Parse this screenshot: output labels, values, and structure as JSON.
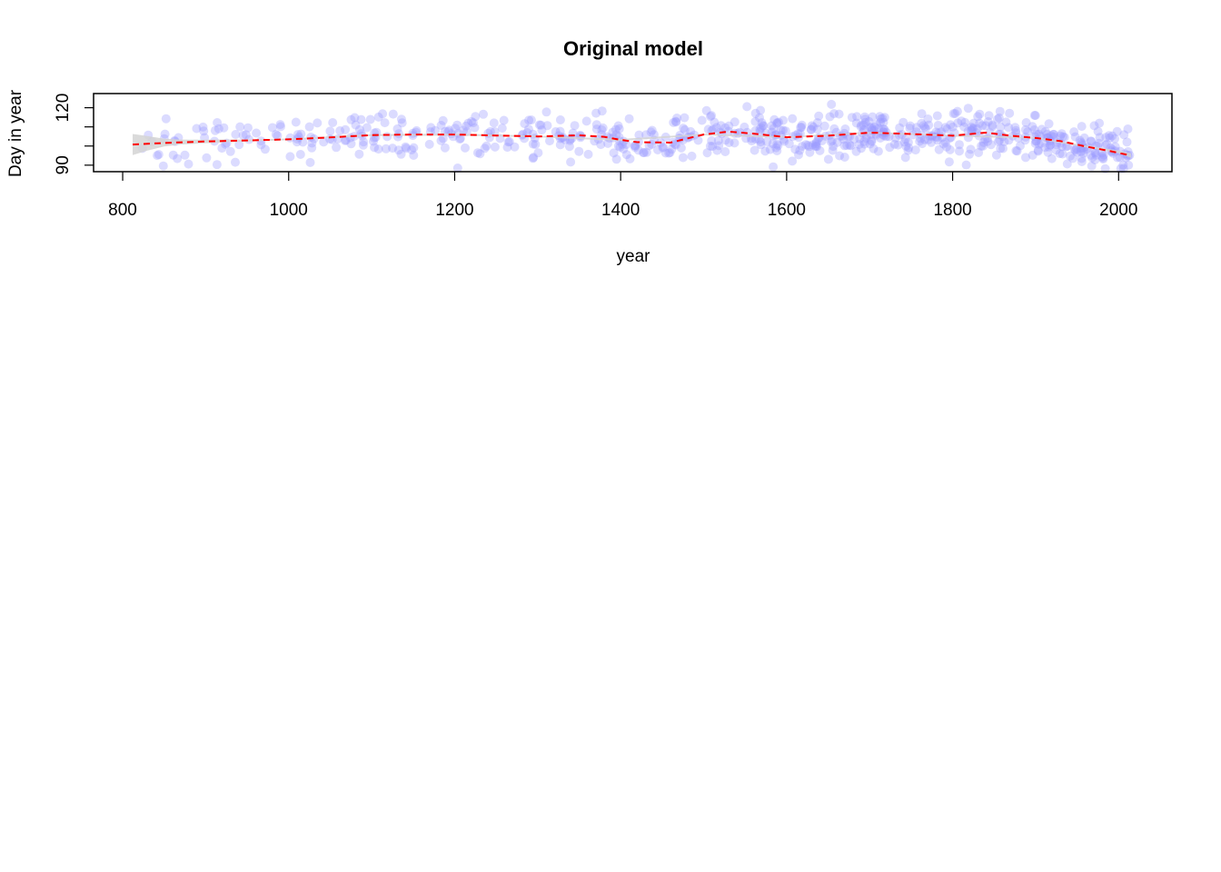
{
  "chart_data": {
    "type": "scatter",
    "title": "Original model",
    "xlabel": "year",
    "ylabel": "Day in year",
    "xlim": [
      812,
      2015
    ],
    "ylim": [
      86.6,
      127.4
    ],
    "x_ticks": [
      800,
      1000,
      1200,
      1400,
      1600,
      1800,
      2000
    ],
    "x_tick_labels": [
      "800",
      "1000",
      "1200",
      "1400",
      "1600",
      "1800",
      "2000"
    ],
    "y_ticks": [
      90,
      100,
      110,
      120
    ],
    "y_tick_labels": [
      "90",
      "",
      "",
      "120"
    ],
    "grid": false,
    "legend": null,
    "series": [
      {
        "kind": "points",
        "color": "#9999ff",
        "opacity": 0.35,
        "point_count": 820,
        "x_range": [
          812,
          2015
        ],
        "y_range": [
          87,
          126
        ]
      },
      {
        "kind": "smooth-fit",
        "line_style": "dashed",
        "color": "#ff0000",
        "x": [
          812,
          850,
          900,
          950,
          1000,
          1050,
          1100,
          1150,
          1200,
          1250,
          1300,
          1350,
          1380,
          1400,
          1420,
          1460,
          1500,
          1530,
          1560,
          1600,
          1650,
          1700,
          1750,
          1800,
          1840,
          1870,
          1900,
          1930,
          1960,
          1990,
          2015
        ],
        "y": [
          100.8,
          101.6,
          102.4,
          102.9,
          103.5,
          104.5,
          105.7,
          106.0,
          106.0,
          105.5,
          105.0,
          105.6,
          104.8,
          103.2,
          102.0,
          101.8,
          106.0,
          107.5,
          106.5,
          104.6,
          105.4,
          107.0,
          106.3,
          105.4,
          107.0,
          105.4,
          104.2,
          102.6,
          99.8,
          97.3,
          95.0
        ]
      },
      {
        "kind": "confidence-band",
        "color": "#d3d3d3",
        "x": [
          812,
          830,
          850,
          870,
          900,
          950,
          1000,
          1100,
          1200,
          1300,
          1400,
          1500,
          1600,
          1700,
          1800,
          1900,
          1960,
          2000,
          2015
        ],
        "lower": [
          95.3,
          97.6,
          99.8,
          100.8,
          101.5,
          102.4,
          103.1,
          105.2,
          105.5,
          104.6,
          102.7,
          105.6,
          104.2,
          106.6,
          105.0,
          103.8,
          99.3,
          96.3,
          93.8
        ],
        "upper": [
          106.3,
          105.2,
          103.8,
          103.4,
          103.3,
          103.4,
          103.9,
          106.2,
          106.5,
          105.4,
          103.7,
          106.4,
          105.0,
          107.4,
          105.8,
          104.6,
          100.3,
          97.7,
          96.2
        ]
      }
    ]
  }
}
